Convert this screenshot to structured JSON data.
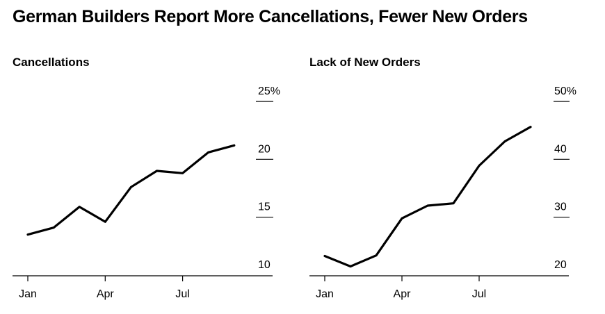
{
  "title": "German Builders Report More Cancellations, Fewer New Orders",
  "colors": {
    "line": "#000000",
    "axis": "#000000",
    "background": "#ffffff"
  },
  "chart_data": [
    {
      "type": "line",
      "title": "Cancellations",
      "xlabel": "",
      "ylabel": "",
      "x_tick_labels": [
        "Jan",
        "Apr",
        "Jul"
      ],
      "y_tick_labels": [
        "25%",
        "20",
        "15",
        "10"
      ],
      "y_tick_values": [
        25,
        20,
        15,
        10
      ],
      "ylim": [
        10,
        25
      ],
      "series": [
        {
          "name": "Cancellations",
          "categories": [
            "Jan",
            "Feb",
            "Mar",
            "Apr",
            "May",
            "Jun",
            "Jul",
            "Aug",
            "Sep"
          ],
          "values": [
            13.5,
            14.1,
            15.9,
            14.6,
            17.6,
            19.0,
            18.8,
            20.6,
            21.2
          ]
        }
      ]
    },
    {
      "type": "line",
      "title": "Lack of New Orders",
      "xlabel": "",
      "ylabel": "",
      "x_tick_labels": [
        "Jan",
        "Apr",
        "Jul"
      ],
      "y_tick_labels": [
        "50%",
        "40",
        "30",
        "20"
      ],
      "y_tick_values": [
        50,
        40,
        30,
        20
      ],
      "ylim": [
        20,
        50
      ],
      "series": [
        {
          "name": "Lack of New Orders",
          "categories": [
            "Jan",
            "Feb",
            "Mar",
            "Apr",
            "May",
            "Jun",
            "Jul",
            "Aug",
            "Sep"
          ],
          "values": [
            23.3,
            21.5,
            23.4,
            29.8,
            32.0,
            32.4,
            38.9,
            43.1,
            45.6
          ]
        }
      ]
    }
  ]
}
